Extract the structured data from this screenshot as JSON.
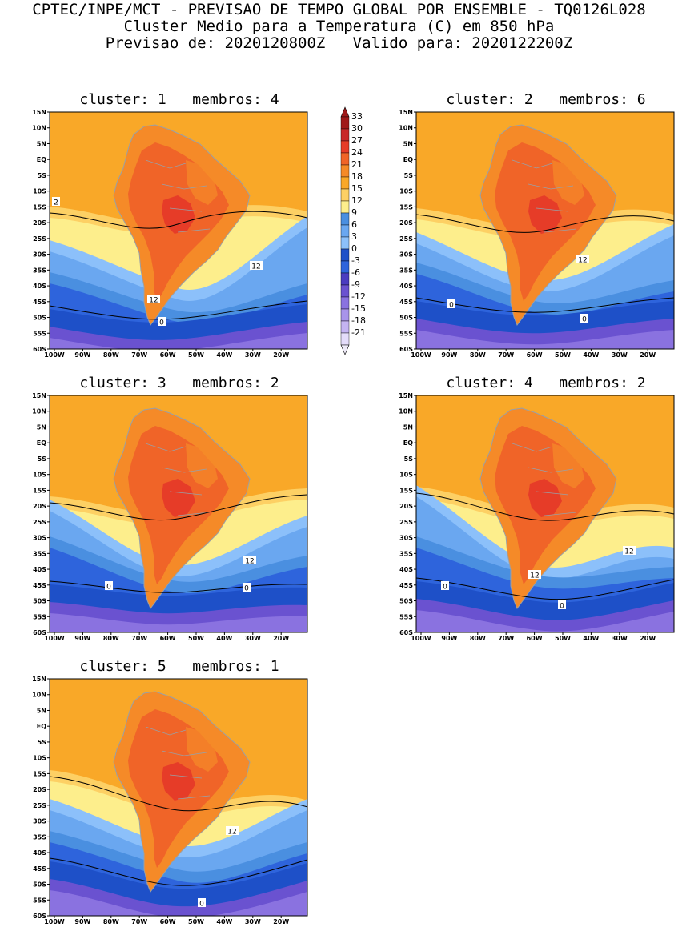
{
  "header": {
    "line1": "CPTEC/INPE/MCT - PREVISAO DE TEMPO GLOBAL POR ENSEMBLE - TQ0126L028",
    "line2": "Cluster Medio para a Temperatura (C) em 850 hPa",
    "line3": "Previsao de: 2020120800Z   Valido para: 2020122200Z"
  },
  "lat_labels": [
    "15N",
    "10N",
    "5N",
    "EQ",
    "5S",
    "10S",
    "15S",
    "20S",
    "25S",
    "30S",
    "35S",
    "40S",
    "45S",
    "50S",
    "55S",
    "60S"
  ],
  "lon_labels": [
    "100W",
    "90W",
    "80W",
    "70W",
    "60W",
    "50W",
    "40W",
    "30W",
    "20W"
  ],
  "colorbar": {
    "labels": [
      "33",
      "30",
      "27",
      "24",
      "21",
      "18",
      "15",
      "12",
      "9",
      "6",
      "3",
      "0",
      "-3",
      "-6",
      "-9",
      "-12",
      "-15",
      "-18",
      "-21"
    ],
    "colors": [
      "#a01818",
      "#c82828",
      "#e63c28",
      "#f06428",
      "#f58a28",
      "#f9a828",
      "#fdd064",
      "#fdee8c",
      "#4a8fe0",
      "#6aa7f0",
      "#8cc0fa",
      "#1e50c8",
      "#2e64dc",
      "#4a3cc0",
      "#6a52d0",
      "#8a72e0",
      "#a894ea",
      "#c4b4f2",
      "#e4dcfa"
    ]
  },
  "panels": [
    {
      "title": "cluster: 1   membros: 4",
      "contour_labels": [
        "2",
        "12",
        "12",
        "0"
      ]
    },
    {
      "title": "cluster: 2   membros: 6",
      "contour_labels": [
        "12",
        "0",
        "0"
      ]
    },
    {
      "title": "cluster: 3   membros: 2",
      "contour_labels": [
        "12",
        "0",
        "0"
      ]
    },
    {
      "title": "cluster: 4   membros: 2",
      "contour_labels": [
        "12",
        "12",
        "0",
        "0"
      ]
    },
    {
      "title": "cluster: 5   membros: 1",
      "contour_labels": [
        "12",
        "0"
      ]
    }
  ]
}
